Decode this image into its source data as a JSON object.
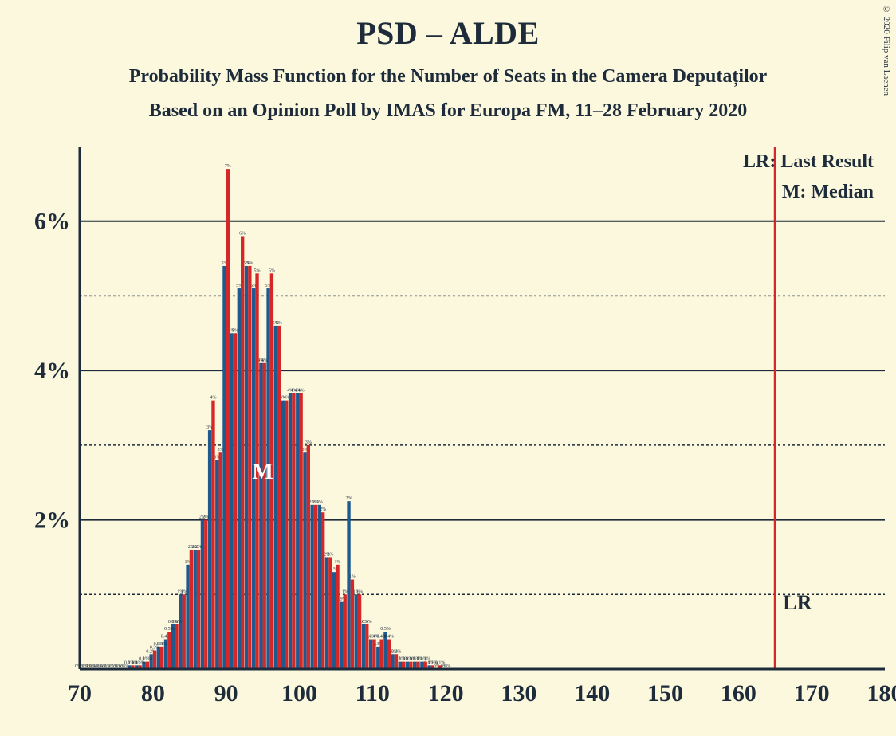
{
  "title": "PSD – ALDE",
  "subtitle1": "Probability Mass Function for the Number of Seats in the Camera Deputaților",
  "subtitle2": "Based on an Opinion Poll by IMAS for Europa FM, 11–28 February 2020",
  "copyright": "© 2020 Filip van Laenen",
  "legend": {
    "lr": "LR: Last Result",
    "m": "M: Median",
    "lr_short": "LR",
    "m_short": "M"
  },
  "chart": {
    "type": "bar-pmf",
    "background_color": "#fcf8de",
    "text_color": "#1d2b3a",
    "x": {
      "min": 70,
      "max": 180,
      "ticks": [
        70,
        80,
        90,
        100,
        110,
        120,
        130,
        140,
        150,
        160,
        170,
        180
      ],
      "tick_fontsize": 30
    },
    "y": {
      "min": 0,
      "max": 7.0,
      "major_ticks": [
        2,
        4,
        6
      ],
      "minor_ticks": [
        1,
        3,
        5
      ],
      "tick_fontsize": 30,
      "label_format": "{v}%"
    },
    "gridline_major_color": "#1d2b3a",
    "gridline_minor_dash": "3,3",
    "axis_color": "#1d2b3a",
    "axis_width": 3,
    "bar_group_width": 0.95,
    "series": [
      {
        "name": "series-a-blue",
        "color": "#1f5a8f",
        "median_x": 95,
        "values": {
          "70": 0,
          "71": 0,
          "72": 0,
          "73": 0,
          "74": 0,
          "75": 0,
          "76": 0,
          "77": 0.05,
          "78": 0.05,
          "79": 0.1,
          "80": 0.2,
          "81": 0.3,
          "82": 0.4,
          "83": 0.6,
          "84": 1.0,
          "85": 1.4,
          "86": 1.6,
          "87": 2.0,
          "88": 3.2,
          "89": 2.8,
          "90": 5.4,
          "91": 4.5,
          "92": 5.1,
          "93": 5.4,
          "94": 5.1,
          "95": 4.1,
          "96": 5.1,
          "97": 4.6,
          "98": 3.6,
          "99": 3.7,
          "100": 3.7,
          "101": 2.9,
          "102": 2.2,
          "103": 2.2,
          "104": 1.5,
          "105": 1.3,
          "106": 0.9,
          "107": 2.25,
          "108": 1.0,
          "109": 0.6,
          "110": 0.4,
          "111": 0.3,
          "112": 0.5,
          "113": 0.2,
          "114": 0.1,
          "115": 0.1,
          "116": 0.1,
          "117": 0.1,
          "118": 0.05,
          "119": 0,
          "120": 0
        }
      },
      {
        "name": "series-b-red",
        "color": "#d62728",
        "last_result_x": 165,
        "values": {
          "70": 0,
          "71": 0,
          "72": 0,
          "73": 0,
          "74": 0,
          "75": 0,
          "76": 0,
          "77": 0.05,
          "78": 0.05,
          "79": 0.1,
          "80": 0.25,
          "81": 0.3,
          "82": 0.5,
          "83": 0.6,
          "84": 1.0,
          "85": 1.6,
          "86": 1.6,
          "87": 2.0,
          "88": 3.6,
          "89": 2.9,
          "90": 6.7,
          "91": 4.5,
          "92": 5.8,
          "93": 5.4,
          "94": 5.3,
          "95": 4.1,
          "96": 5.3,
          "97": 4.6,
          "98": 3.6,
          "99": 3.7,
          "100": 3.7,
          "101": 3.0,
          "102": 2.2,
          "103": 2.1,
          "104": 1.5,
          "105": 1.4,
          "106": 1.0,
          "107": 1.2,
          "108": 1.0,
          "109": 0.6,
          "110": 0.4,
          "111": 0.4,
          "112": 0.4,
          "113": 0.2,
          "114": 0.1,
          "115": 0.1,
          "116": 0.1,
          "117": 0.1,
          "118": 0.05,
          "119": 0.05,
          "120": 0
        }
      }
    ]
  }
}
